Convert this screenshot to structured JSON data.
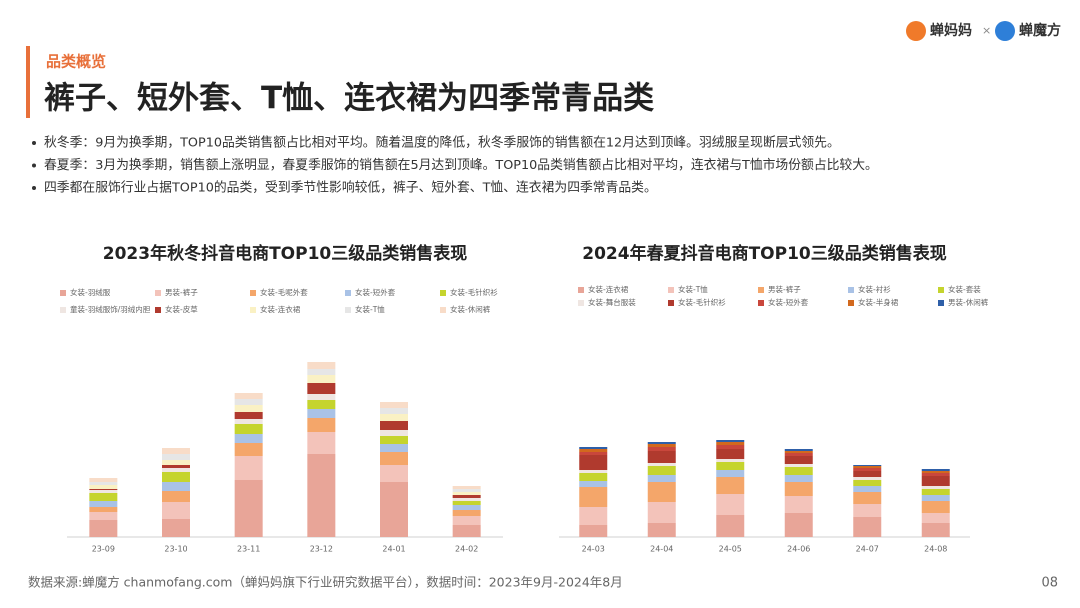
{
  "header": {
    "section": "品类概览",
    "title": "裤子、短外套、T恤、连衣裙为四季常青品类",
    "logos": [
      "蝉妈妈",
      "×",
      "蝉魔方"
    ]
  },
  "bullets": [
    "秋冬季：9月为换季期，TOP10品类销售额占比相对平均。随着温度的降低，秋冬季服饰的销售额在12月达到顶峰。羽绒服呈现断层式领先。",
    "春夏季：3月为换季期，销售额上涨明显，春夏季服饰的销售额在5月达到顶峰。TOP10品类销售额占比相对平均，连衣裙与T恤市场份额占比较大。",
    "四季都在服饰行业占据TOP10的品类，受到季节性影响较低，裤子、短外套、T恤、连衣裙为四季常青品类。"
  ],
  "chart_data": [
    {
      "type": "bar",
      "stacked": true,
      "title": "2023年秋冬抖音电商TOP10三级品类销售表现",
      "categories": [
        "23-09",
        "23-10",
        "23-11",
        "23-12",
        "24-01",
        "24-02"
      ],
      "series": [
        {
          "name": "女装-羽绒服",
          "color": "#e8a598",
          "values": [
            17,
            18,
            57,
            83,
            55,
            12
          ]
        },
        {
          "name": "男装-裤子",
          "color": "#f3c3ba",
          "values": [
            8,
            17,
            24,
            22,
            17,
            9
          ]
        },
        {
          "name": "女装-毛呢外套",
          "color": "#f4a66a",
          "values": [
            5,
            11,
            13,
            14,
            13,
            6
          ]
        },
        {
          "name": "女装-短外套",
          "color": "#a9c2e6",
          "values": [
            6,
            9,
            9,
            9,
            8,
            5
          ]
        },
        {
          "name": "女装-毛针织衫",
          "color": "#c5d42e",
          "values": [
            8,
            10,
            10,
            9,
            8,
            4
          ]
        },
        {
          "name": "童装-羽绒服饰/羽绒内胆",
          "color": "#efe6e2",
          "values": [
            3,
            4,
            5,
            6,
            6,
            3
          ]
        },
        {
          "name": "女装-皮草",
          "color": "#b03a2e",
          "values": [
            1,
            3,
            7,
            11,
            9,
            3
          ]
        },
        {
          "name": "女装-连衣裙",
          "color": "#faf1c4",
          "values": [
            4,
            5,
            7,
            8,
            7,
            3
          ]
        },
        {
          "name": "女装-T恤",
          "color": "#e6e6e6",
          "values": [
            3,
            6,
            6,
            6,
            6,
            3
          ]
        },
        {
          "name": "女装-休闲裤",
          "color": "#f8dcc8",
          "values": [
            4,
            6,
            6,
            7,
            6,
            3
          ]
        }
      ]
    },
    {
      "type": "bar",
      "stacked": true,
      "title": "2024年春夏抖音电商TOP10三级品类销售表现",
      "categories": [
        "24-03",
        "24-04",
        "24-05",
        "24-06",
        "24-07",
        "24-08"
      ],
      "series": [
        {
          "name": "女装-连衣裙",
          "color": "#e8a598",
          "values": [
            12,
            14,
            22,
            24,
            20,
            14
          ]
        },
        {
          "name": "女装-T恤",
          "color": "#f3c3ba",
          "values": [
            18,
            21,
            21,
            17,
            13,
            10
          ]
        },
        {
          "name": "男装-裤子",
          "color": "#f4a66a",
          "values": [
            20,
            20,
            17,
            14,
            12,
            12
          ]
        },
        {
          "name": "女装-衬衫",
          "color": "#a9c2e6",
          "values": [
            6,
            7,
            7,
            7,
            6,
            6
          ]
        },
        {
          "name": "女装-套装",
          "color": "#c5d42e",
          "values": [
            8,
            9,
            8,
            8,
            6,
            6
          ]
        },
        {
          "name": "女装-舞台服装",
          "color": "#efe6e2",
          "values": [
            3,
            3,
            3,
            3,
            3,
            3
          ]
        },
        {
          "name": "女装-毛针织衫",
          "color": "#b03a2e",
          "values": [
            15,
            12,
            10,
            8,
            6,
            10
          ]
        },
        {
          "name": "女装-短外套",
          "color": "#c9473c",
          "values": [
            3,
            4,
            4,
            3,
            3,
            3
          ]
        },
        {
          "name": "女装-半身裙",
          "color": "#d2691e",
          "values": [
            3,
            3,
            3,
            2,
            2,
            2
          ]
        },
        {
          "name": "男装-休闲裤",
          "color": "#2e5fa8",
          "values": [
            2,
            2,
            2,
            2,
            1,
            2
          ]
        }
      ]
    }
  ],
  "footer": {
    "source": "数据来源:蝉魔方 chanmofang.com（蝉妈妈旗下行业研究数据平台），数据时间：2023年9月-2024年8月",
    "page": "08"
  }
}
